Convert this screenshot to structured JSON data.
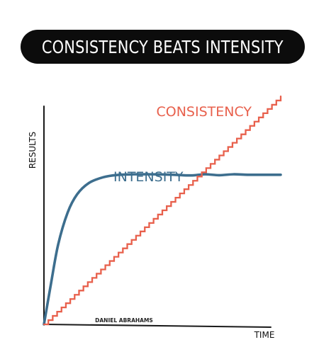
{
  "header": {
    "title": "CONSISTENCY BEATS INTENSITY"
  },
  "chart_data": {
    "type": "line",
    "title": "CONSISTENCY BEATS INTENSITY",
    "xlabel": "TIME",
    "ylabel": "RESULTS",
    "xlim": [
      0,
      100
    ],
    "ylim": [
      0,
      100
    ],
    "grid": false,
    "legend": "none",
    "credit": "DANIEL ABRAHAMS",
    "series": [
      {
        "name": "INTENSITY",
        "color": "#3d6e8e",
        "style": "smooth",
        "x": [
          0,
          3,
          6,
          10,
          14,
          19,
          25,
          31,
          38,
          46,
          55,
          62,
          68,
          74,
          80,
          86,
          92,
          100
        ],
        "y": [
          0,
          18,
          35,
          49,
          57,
          62,
          64.5,
          65.5,
          65.8,
          65.8,
          65.6,
          65.3,
          65.8,
          65.4,
          65.8,
          65.6,
          65.6,
          65.6
        ]
      },
      {
        "name": "CONSISTENCY",
        "color": "#e8604c",
        "style": "staircase",
        "steps": 54,
        "x": [
          0,
          100
        ],
        "y": [
          0,
          100
        ]
      }
    ]
  }
}
